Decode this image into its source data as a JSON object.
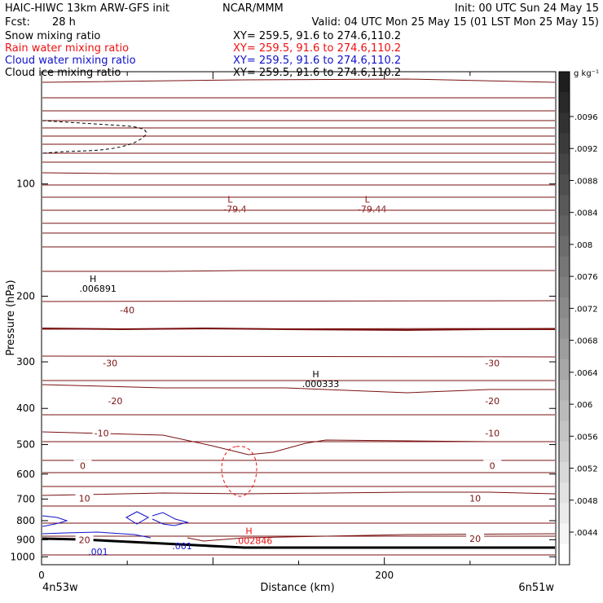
{
  "header": {
    "title_left": "HAIC-HIWC 13km ARW-GFS init",
    "org": "NCAR/MMM",
    "init": "Init: 00 UTC Sun 24 May 15",
    "fcst_label": "Fcst:",
    "fcst_value": "28 h",
    "valid": "Valid: 04 UTC Mon 25 May 15 (01 LST Mon 25 May 15)"
  },
  "fields": [
    {
      "name": "Snow mixing ratio",
      "xy": "XY= 259.5, 91.6 to 274.6,110.2",
      "color": "#000000"
    },
    {
      "name": "Rain water mixing ratio",
      "xy": "XY= 259.5, 91.6 to 274.6,110.2",
      "color": "#ee1111"
    },
    {
      "name": "Cloud water mixing ratio",
      "xy": "XY= 259.5, 91.6 to 274.6,110.2",
      "color": "#1111cc"
    },
    {
      "name": "Cloud ice mixing ratio",
      "xy": "XY= 259.5, 91.6 to 274.6,110.2",
      "color": "#000000"
    }
  ],
  "axes": {
    "ylabel": "Pressure (hPa)",
    "xlabel": "Distance (km)",
    "x_left_label": "4n53w",
    "x_right_label": "6n51w"
  },
  "colorbar": {
    "unit": "g kg⁻¹",
    "ticks": [
      ".0096",
      ".0092",
      ".0088",
      ".0084",
      ".008",
      ".0076",
      ".0072",
      ".0068",
      ".0064",
      ".006",
      ".0056",
      ".0052",
      ".0048",
      ".0044"
    ]
  },
  "chart_data": {
    "type": "contour",
    "x_range": [
      0,
      300
    ],
    "y_range": [
      50,
      1050
    ],
    "y_scale": "log",
    "x_ticks": [
      0,
      200
    ],
    "y_ticks": [
      100,
      200,
      300,
      400,
      500,
      600,
      700,
      800,
      900,
      1000
    ],
    "grid": false,
    "temperature_labels": [
      {
        "text": "-40",
        "x": 50,
        "p": 218
      },
      {
        "text": "-30",
        "x": 40,
        "p": 302
      },
      {
        "text": "-30",
        "x": 263,
        "p": 302
      },
      {
        "text": "-20",
        "x": 43,
        "p": 382
      },
      {
        "text": "-20",
        "x": 263,
        "p": 382
      },
      {
        "text": "-10",
        "x": 35,
        "p": 466
      },
      {
        "text": "-10",
        "x": 263,
        "p": 466
      },
      {
        "text": "0",
        "x": 24,
        "p": 570
      },
      {
        "text": "0",
        "x": 263,
        "p": 570
      },
      {
        "text": "10",
        "x": 25,
        "p": 697
      },
      {
        "text": "10",
        "x": 253,
        "p": 697
      },
      {
        "text": "20",
        "x": 25,
        "p": 900
      },
      {
        "text": "20",
        "x": 253,
        "p": 893
      }
    ],
    "extrema": [
      {
        "type": "L",
        "value": "-79.4",
        "x": 110,
        "p": 112,
        "color": "#8b1a1a"
      },
      {
        "type": "L",
        "value": "-79.44",
        "x": 190,
        "p": 112,
        "color": "#8b1a1a"
      },
      {
        "type": "H",
        "value": ".006891",
        "x": 30,
        "p": 183,
        "color": "#000000"
      },
      {
        "type": "H",
        "value": ".000333",
        "x": 160,
        "p": 330,
        "color": "#000000"
      },
      {
        "type": "H",
        "value": ".002846",
        "x": 121,
        "p": 870,
        "color": "#ee1111"
      }
    ],
    "cloud_water_labels": [
      {
        "text": ".001",
        "x": 82,
        "p": 955
      },
      {
        "text": ".001",
        "x": 33,
        "p": 988
      }
    ]
  }
}
